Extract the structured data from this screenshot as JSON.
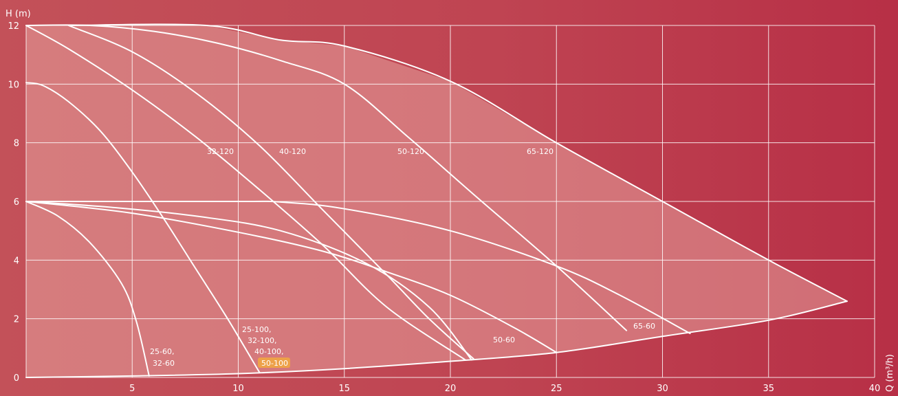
{
  "chart_data": {
    "type": "line",
    "title": "",
    "xlabel": "Q (m³/h)",
    "ylabel": "H (m)",
    "xlim": [
      0,
      40
    ],
    "ylim": [
      0,
      12
    ],
    "xticks": [
      5,
      10,
      15,
      20,
      25,
      30,
      35,
      40
    ],
    "yticks": [
      0,
      2,
      4,
      6,
      8,
      10,
      12
    ],
    "grid": true,
    "colors": {
      "curve": "#ffffff",
      "envelope_fill": "#e5a19c",
      "background": "#c04654",
      "highlight": "#f6b233"
    },
    "envelope": [
      [
        0,
        12
      ],
      [
        8.5,
        12
      ],
      [
        12,
        11.5
      ],
      [
        15,
        11.3
      ],
      [
        20,
        10.1
      ],
      [
        25,
        8.0
      ],
      [
        30,
        6.0
      ],
      [
        35,
        4.0
      ],
      [
        38.7,
        2.6
      ],
      [
        35,
        1.95
      ],
      [
        30,
        1.4
      ],
      [
        25,
        0.85
      ],
      [
        20,
        0.55
      ],
      [
        15,
        0.3
      ],
      [
        10,
        0.13
      ],
      [
        5,
        0.05
      ],
      [
        0,
        0
      ]
    ],
    "series": [
      {
        "id": "s_25_60",
        "points": [
          [
            0,
            6.0
          ],
          [
            1.5,
            5.5
          ],
          [
            3,
            4.6
          ],
          [
            4.5,
            3.2
          ],
          [
            5.2,
            1.9
          ],
          [
            5.8,
            0.05
          ]
        ]
      },
      {
        "id": "s_25_100",
        "points": [
          [
            0,
            10.05
          ],
          [
            0.8,
            9.95
          ],
          [
            2,
            9.4
          ],
          [
            3.5,
            8.4
          ],
          [
            5,
            7.0
          ],
          [
            6.5,
            5.4
          ],
          [
            8,
            3.7
          ],
          [
            9.5,
            2.0
          ],
          [
            11,
            0.17
          ]
        ]
      },
      {
        "id": "s_32_120",
        "points": [
          [
            0,
            12.0
          ],
          [
            2,
            11.2
          ],
          [
            5,
            9.8
          ],
          [
            8,
            8.2
          ],
          [
            11,
            6.4
          ],
          [
            14,
            4.5
          ],
          [
            17,
            2.4
          ],
          [
            20.7,
            0.6
          ]
        ]
      },
      {
        "id": "s_40_120",
        "points": [
          [
            2,
            12.0
          ],
          [
            5,
            11.1
          ],
          [
            8,
            9.7
          ],
          [
            11,
            7.9
          ],
          [
            14,
            5.7
          ],
          [
            17,
            3.5
          ],
          [
            19,
            2.0
          ],
          [
            21.1,
            0.63
          ]
        ]
      },
      {
        "id": "s_50_120",
        "points": [
          [
            0,
            12.0
          ],
          [
            3,
            12.0
          ],
          [
            6,
            11.8
          ],
          [
            9,
            11.4
          ],
          [
            12,
            10.8
          ],
          [
            15,
            10.0
          ],
          [
            18,
            8.2
          ],
          [
            21,
            6.3
          ],
          [
            25,
            3.8
          ],
          [
            28.3,
            1.6
          ]
        ]
      },
      {
        "id": "s_65_120",
        "points": [
          [
            2,
            12.0
          ],
          [
            8.5,
            12.0
          ],
          [
            12,
            11.5
          ],
          [
            15,
            11.3
          ],
          [
            20,
            10.1
          ],
          [
            25,
            8.0
          ],
          [
            30,
            6.0
          ],
          [
            35,
            4.0
          ],
          [
            38.7,
            2.6
          ]
        ]
      },
      {
        "id": "s_50_60",
        "points": [
          [
            0,
            6.0
          ],
          [
            5,
            5.6
          ],
          [
            10,
            4.95
          ],
          [
            14,
            4.3
          ],
          [
            17,
            3.6
          ],
          [
            20,
            2.8
          ],
          [
            23,
            1.7
          ],
          [
            25,
            0.85
          ]
        ]
      },
      {
        "id": "s_65_60",
        "points": [
          [
            0,
            6.0
          ],
          [
            10,
            6.0
          ],
          [
            12,
            5.98
          ],
          [
            15,
            5.75
          ],
          [
            20,
            5.0
          ],
          [
            25,
            3.8
          ],
          [
            28,
            2.8
          ],
          [
            31.3,
            1.5
          ]
        ]
      },
      {
        "id": "s_32_100",
        "points": [
          [
            0,
            6.0
          ],
          [
            4,
            5.8
          ],
          [
            8,
            5.5
          ],
          [
            12,
            5.0
          ],
          [
            16,
            3.9
          ],
          [
            19,
            2.4
          ],
          [
            21,
            0.6
          ]
        ]
      }
    ],
    "labels": {
      "l_32_120": "32-120",
      "l_40_120": "40-120",
      "l_50_120": "50-120",
      "l_65_120": "65-120",
      "l_50_60": "50-60",
      "l_65_60": "65-60",
      "l_25_60_a": "25-60,",
      "l_25_60_b": "32-60",
      "l_25_100_a": "25-100,",
      "l_25_100_b": "32-100,",
      "l_25_100_c": "40-100,",
      "l_25_100_d": "50-100"
    }
  }
}
